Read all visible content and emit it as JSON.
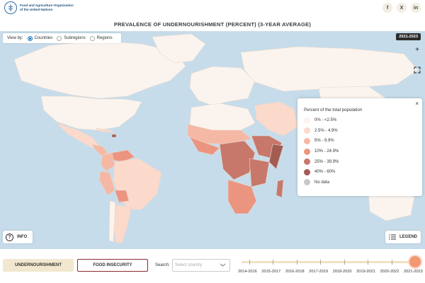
{
  "header": {
    "org_line1": "Food and Agriculture Organization",
    "org_line2": "of the United Nations",
    "title": "PREVALENCE OF UNDERNOURISHMENT (PERCENT) (3-YEAR AVERAGE)",
    "social": [
      {
        "icon": "facebook-icon",
        "glyph": "f"
      },
      {
        "icon": "x-icon",
        "glyph": "X"
      },
      {
        "icon": "linkedin-icon",
        "glyph": "in"
      }
    ]
  },
  "map": {
    "view_by_label": "View by:",
    "view_options": [
      {
        "label": "Countries",
        "selected": true
      },
      {
        "label": "Subregions",
        "selected": false
      },
      {
        "label": "Regions",
        "selected": false
      }
    ],
    "year_badge": "2021-2023",
    "zoom_in": "+",
    "info_label": "INFO",
    "legend_button_label": "LEGEND",
    "colors": {
      "ocean": "#c6dcea",
      "land_default": "#fbf4ee",
      "no_data": "#c8c8c8"
    }
  },
  "legend": {
    "title": "Percent of the total population",
    "close": "×",
    "items": [
      {
        "label": "0% - <2.5%",
        "color": "#fdf3ec"
      },
      {
        "label": "2.5% - 4.9%",
        "color": "#fbd9cb"
      },
      {
        "label": "5% - 9.9%",
        "color": "#f5b8a4"
      },
      {
        "label": "10% - 24.9%",
        "color": "#eb9580"
      },
      {
        "label": "25% - 39.9%",
        "color": "#c7786b"
      },
      {
        "label": "40% - 60%",
        "color": "#a35c52"
      },
      {
        "label": "No data",
        "color": "#c8c8c8"
      }
    ]
  },
  "controls": {
    "tab_undernourishment": "UNDERNOURISHMENT",
    "tab_food_insecurity": "FOOD INSECURITY",
    "search_label": "Search:",
    "search_placeholder": "Select country"
  },
  "timeline": {
    "years": [
      "2014-2016",
      "2015-2017",
      "2016-2018",
      "2017-2019",
      "2018-2020",
      "2019-2021",
      "2020-2022",
      "2021-2023"
    ],
    "selected_index": 7
  }
}
